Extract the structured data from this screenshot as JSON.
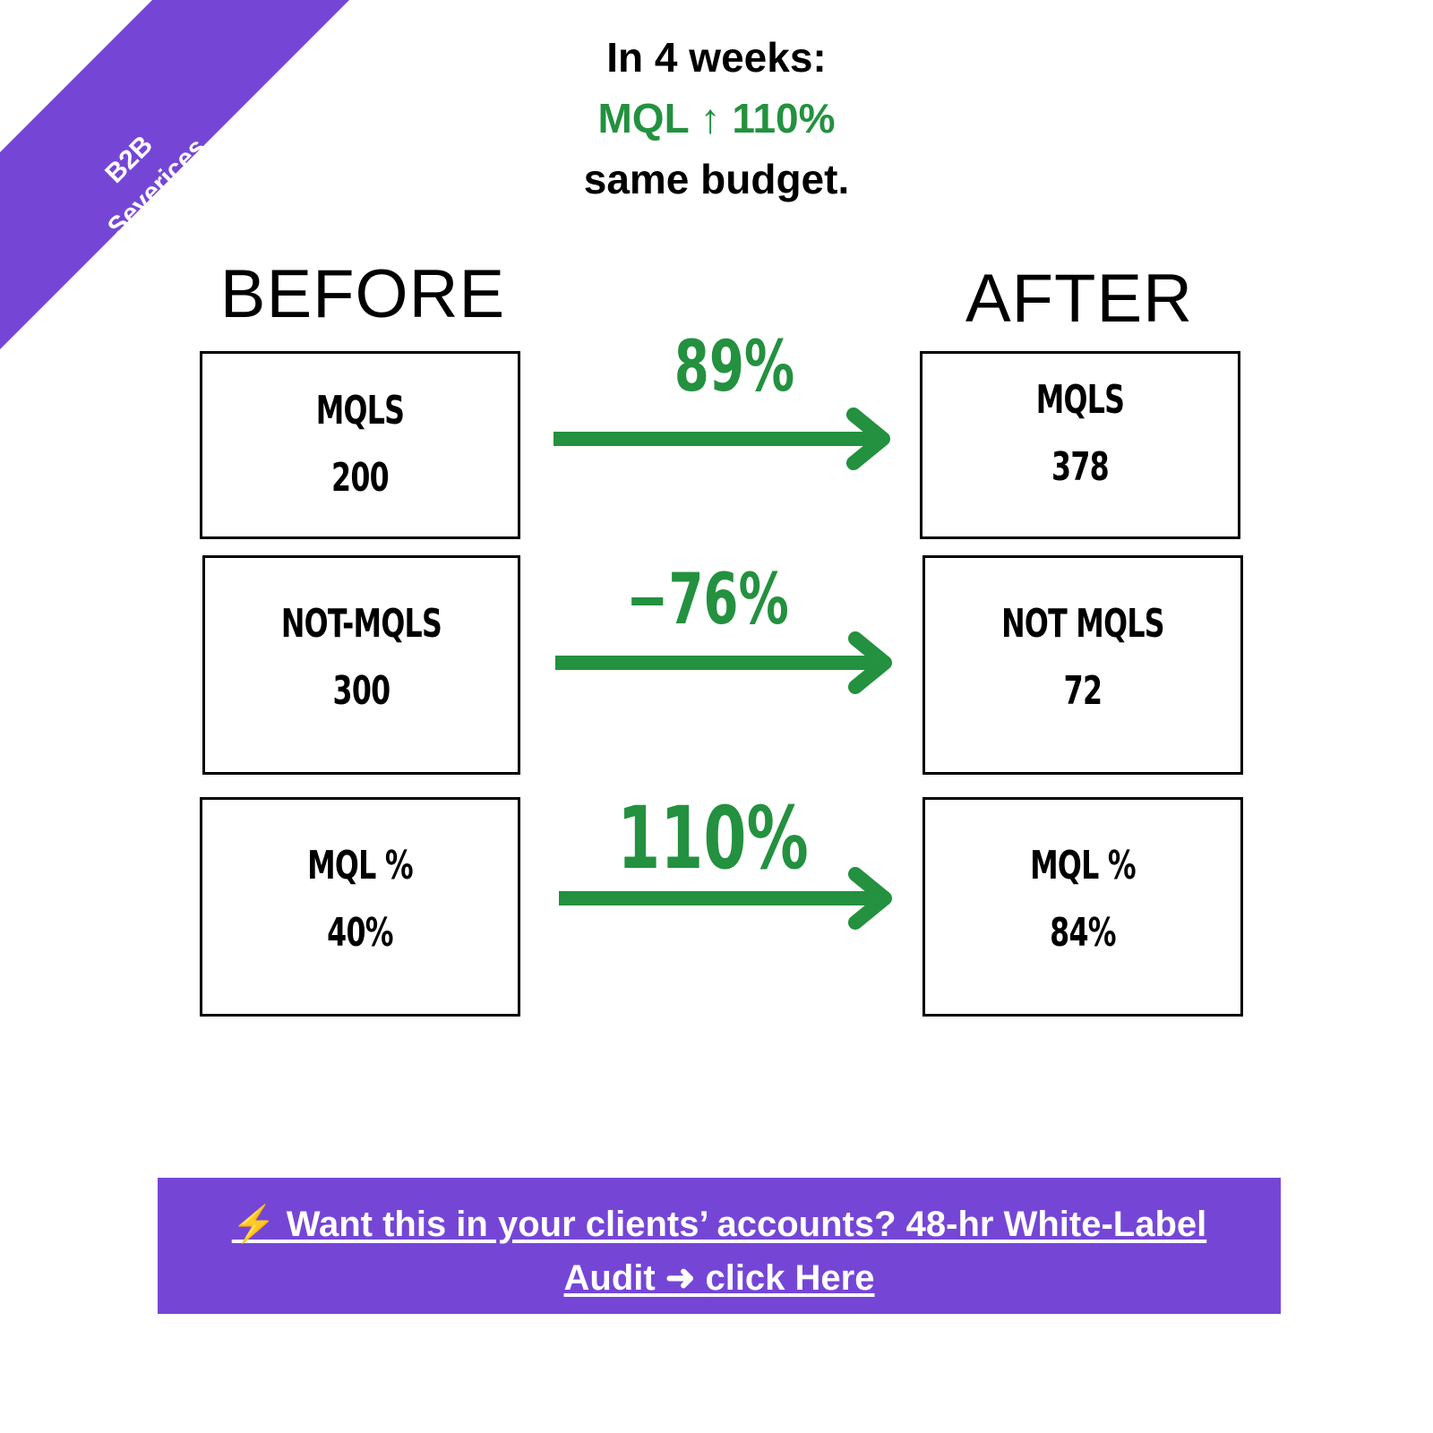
{
  "ribbon": {
    "line1": "B2B",
    "line2": "Severices",
    "color": "#7546d6"
  },
  "headline": {
    "line1": "In 4 weeks:",
    "line2": "MQL ↑ 110%",
    "line3": "same budget."
  },
  "columns": {
    "before": "BEFORE",
    "after": "AFTER"
  },
  "rows": [
    {
      "before_label": "MQLS",
      "before_value": "200",
      "change": "89%",
      "after_label": "MQLS",
      "after_value": "378"
    },
    {
      "before_label": "NOT-MQLS",
      "before_value": "300",
      "change": "−76%",
      "after_label": "NOT MQLS",
      "after_value": "72"
    },
    {
      "before_label": "MQL %",
      "before_value": "40%",
      "change": "110%",
      "after_label": "MQL %",
      "after_value": "84%"
    }
  ],
  "cta": {
    "bolt": "⚡",
    "line1": " Want this in your clients’ accounts? 48-hr White-Label",
    "line2": "Audit ➜ ",
    "link": "click Here"
  },
  "colors": {
    "green": "#23913f",
    "purple": "#7546d6"
  }
}
